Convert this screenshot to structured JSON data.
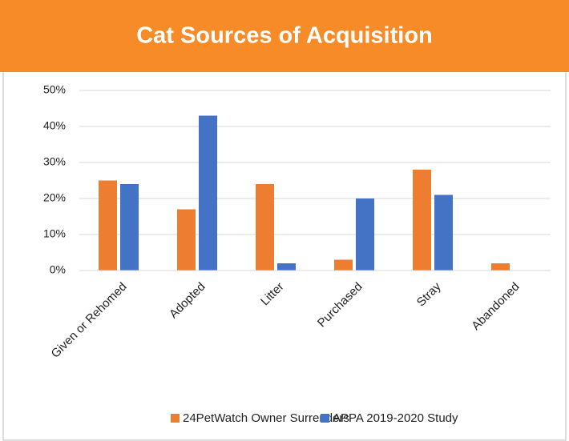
{
  "chart_data": {
    "type": "bar",
    "title": "Cat Sources of Acquisition",
    "categories": [
      "Given or Rehomed",
      "Adopted",
      "Litter",
      "Purchased",
      "Stray",
      "Abandoned"
    ],
    "series": [
      {
        "name": "24PetWatch Owner Surrenders",
        "color": "#ed7d31",
        "values": [
          25,
          17,
          24,
          3,
          28,
          2
        ]
      },
      {
        "name": "APPA 2019-2020 Study",
        "color": "#4472c4",
        "values": [
          24,
          43,
          2,
          20,
          21,
          0
        ]
      }
    ],
    "ylim": [
      0,
      50
    ],
    "yticks": [
      {
        "value": 0,
        "label": "0%"
      },
      {
        "value": 10,
        "label": "10%"
      },
      {
        "value": 20,
        "label": "20%"
      },
      {
        "value": 30,
        "label": "30%"
      },
      {
        "value": 40,
        "label": "40%"
      },
      {
        "value": 50,
        "label": "50%"
      }
    ],
    "grid": true,
    "legend": "bottom"
  }
}
